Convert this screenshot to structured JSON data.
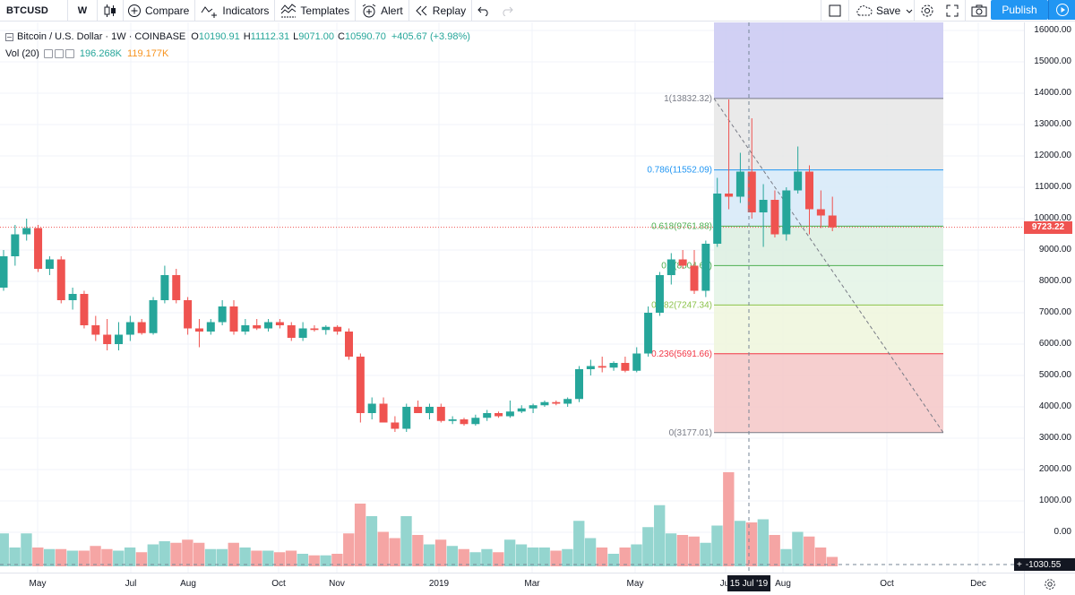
{
  "toolbar": {
    "symbol": "BTCUSD",
    "interval": "W",
    "compare_label": "Compare",
    "indicators_label": "Indicators",
    "templates_label": "Templates",
    "alert_label": "Alert",
    "replay_label": "Replay",
    "save_label": "Save",
    "publish_label": "Publish"
  },
  "legend": {
    "title": "Bitcoin / U.S. Dollar · 1W · COINBASE",
    "o_key": "O",
    "o_val": "10190.91",
    "h_key": "H",
    "h_val": "11112.31",
    "l_key": "L",
    "l_val": "9071.00",
    "c_key": "C",
    "c_val": "10590.70",
    "change": "+405.67 (+3.98%)",
    "vol_label": "Vol (20)",
    "vol_value": "196.268K",
    "vol_ma": "119.177K"
  },
  "price_axis": {
    "labels": [
      "16000.00",
      "15000.00",
      "14000.00",
      "13000.00",
      "12000.00",
      "11000.00",
      "10000.00",
      "9000.00",
      "8000.00",
      "7000.00",
      "6000.00",
      "5000.00",
      "4000.00",
      "3000.00",
      "2000.00",
      "1000.00",
      "0.00"
    ],
    "last_price": "9723.22",
    "crosshair_value": "-1030.55"
  },
  "time_axis": {
    "labels": [
      "May",
      "Jul",
      "Aug",
      "Oct",
      "Nov",
      "2019",
      "Mar",
      "May",
      "Jul",
      "Aug",
      "Oct",
      "Dec"
    ],
    "crosshair_date": "15 Jul '19"
  },
  "fibonacci": {
    "levels": [
      {
        "label": "1(13832.32)",
        "value": 13832.32,
        "color": "#787b86"
      },
      {
        "label": "0.786(11552.09)",
        "value": 11552.09,
        "color": "#2196f3"
      },
      {
        "label": "0.618(9761.88)",
        "value": 9761.88,
        "color": "#4caf50"
      },
      {
        "label": "0.5(8504.67)",
        "value": 8504.67,
        "color": "#4caf50"
      },
      {
        "label": "0.382(7247.34)",
        "value": 7247.34,
        "color": "#8bc34a"
      },
      {
        "label": "0.236(5691.66)",
        "value": 5691.66,
        "color": "#f23645"
      },
      {
        "label": "0(3177.01)",
        "value": 3177.01,
        "color": "#787b86"
      }
    ]
  },
  "colors": {
    "up": "#26a69a",
    "down": "#ef5350",
    "vol_up": "#94d5cf",
    "vol_down": "#f5a5a4",
    "accent": "#2196f3"
  },
  "chart_data": {
    "type": "candlestick",
    "title": "Bitcoin / U.S. Dollar · 1W · COINBASE",
    "ylim": [
      -1200,
      16300
    ],
    "last_price": 9723.22,
    "candles": [
      {
        "o": 7800,
        "h": 9000,
        "l": 7700,
        "c": 8800,
        "v": 1050
      },
      {
        "o": 8800,
        "h": 9800,
        "l": 8500,
        "c": 9500,
        "v": 600
      },
      {
        "o": 9500,
        "h": 10000,
        "l": 9300,
        "c": 9700,
        "v": 1050
      },
      {
        "o": 9700,
        "h": 9800,
        "l": 8300,
        "c": 8400,
        "v": 600
      },
      {
        "o": 8400,
        "h": 8800,
        "l": 8200,
        "c": 8700,
        "v": 550
      },
      {
        "o": 8700,
        "h": 8800,
        "l": 7300,
        "c": 7400,
        "v": 550
      },
      {
        "o": 7400,
        "h": 7800,
        "l": 7100,
        "c": 7600,
        "v": 500
      },
      {
        "o": 7600,
        "h": 7700,
        "l": 6500,
        "c": 6600,
        "v": 500
      },
      {
        "o": 6600,
        "h": 6900,
        "l": 6100,
        "c": 6300,
        "v": 650
      },
      {
        "o": 6300,
        "h": 6800,
        "l": 5800,
        "c": 6000,
        "v": 550
      },
      {
        "o": 6000,
        "h": 6700,
        "l": 5800,
        "c": 6300,
        "v": 500
      },
      {
        "o": 6300,
        "h": 6900,
        "l": 6100,
        "c": 6700,
        "v": 600
      },
      {
        "o": 6700,
        "h": 6800,
        "l": 6300,
        "c": 6350,
        "v": 450
      },
      {
        "o": 6350,
        "h": 7500,
        "l": 6300,
        "c": 7400,
        "v": 700
      },
      {
        "o": 7400,
        "h": 8500,
        "l": 7300,
        "c": 8200,
        "v": 800
      },
      {
        "o": 8200,
        "h": 8400,
        "l": 7300,
        "c": 7400,
        "v": 750
      },
      {
        "o": 7400,
        "h": 7500,
        "l": 6300,
        "c": 6500,
        "v": 850
      },
      {
        "o": 6500,
        "h": 6800,
        "l": 5900,
        "c": 6400,
        "v": 750
      },
      {
        "o": 6400,
        "h": 6800,
        "l": 6300,
        "c": 6700,
        "v": 550
      },
      {
        "o": 6700,
        "h": 7400,
        "l": 6600,
        "c": 7200,
        "v": 550
      },
      {
        "o": 7200,
        "h": 7400,
        "l": 6300,
        "c": 6400,
        "v": 750
      },
      {
        "o": 6400,
        "h": 6800,
        "l": 6300,
        "c": 6600,
        "v": 600
      },
      {
        "o": 6600,
        "h": 6800,
        "l": 6450,
        "c": 6500,
        "v": 500
      },
      {
        "o": 6500,
        "h": 6800,
        "l": 6400,
        "c": 6700,
        "v": 500
      },
      {
        "o": 6700,
        "h": 6800,
        "l": 6500,
        "c": 6600,
        "v": 450
      },
      {
        "o": 6600,
        "h": 6700,
        "l": 6100,
        "c": 6200,
        "v": 500
      },
      {
        "o": 6200,
        "h": 6700,
        "l": 6100,
        "c": 6500,
        "v": 400
      },
      {
        "o": 6500,
        "h": 6600,
        "l": 6400,
        "c": 6450,
        "v": 350
      },
      {
        "o": 6450,
        "h": 6600,
        "l": 6300,
        "c": 6550,
        "v": 350
      },
      {
        "o": 6550,
        "h": 6600,
        "l": 6300,
        "c": 6400,
        "v": 400
      },
      {
        "o": 6400,
        "h": 6500,
        "l": 5500,
        "c": 5600,
        "v": 1050
      },
      {
        "o": 5600,
        "h": 5700,
        "l": 3500,
        "c": 3800,
        "v": 2000
      },
      {
        "o": 3800,
        "h": 4300,
        "l": 3600,
        "c": 4100,
        "v": 1600
      },
      {
        "o": 4100,
        "h": 4300,
        "l": 3500,
        "c": 3500,
        "v": 1100
      },
      {
        "o": 3500,
        "h": 3700,
        "l": 3200,
        "c": 3300,
        "v": 900
      },
      {
        "o": 3300,
        "h": 4100,
        "l": 3200,
        "c": 4000,
        "v": 1600
      },
      {
        "o": 4000,
        "h": 4200,
        "l": 3800,
        "c": 3800,
        "v": 1000
      },
      {
        "o": 3800,
        "h": 4100,
        "l": 3600,
        "c": 4000,
        "v": 700
      },
      {
        "o": 4000,
        "h": 4100,
        "l": 3500,
        "c": 3550,
        "v": 850
      },
      {
        "o": 3550,
        "h": 3700,
        "l": 3450,
        "c": 3600,
        "v": 650
      },
      {
        "o": 3600,
        "h": 3650,
        "l": 3400,
        "c": 3450,
        "v": 550
      },
      {
        "o": 3450,
        "h": 3750,
        "l": 3400,
        "c": 3650,
        "v": 450
      },
      {
        "o": 3650,
        "h": 3900,
        "l": 3550,
        "c": 3800,
        "v": 550
      },
      {
        "o": 3800,
        "h": 3850,
        "l": 3650,
        "c": 3700,
        "v": 450
      },
      {
        "o": 3700,
        "h": 4200,
        "l": 3650,
        "c": 3850,
        "v": 850
      },
      {
        "o": 3850,
        "h": 4050,
        "l": 3800,
        "c": 3950,
        "v": 700
      },
      {
        "o": 3950,
        "h": 4100,
        "l": 3800,
        "c": 4050,
        "v": 600
      },
      {
        "o": 4050,
        "h": 4200,
        "l": 4000,
        "c": 4150,
        "v": 600
      },
      {
        "o": 4150,
        "h": 4200,
        "l": 4050,
        "c": 4100,
        "v": 500
      },
      {
        "o": 4100,
        "h": 4300,
        "l": 4000,
        "c": 4250,
        "v": 550
      },
      {
        "o": 4250,
        "h": 5300,
        "l": 4150,
        "c": 5200,
        "v": 1450
      },
      {
        "o": 5200,
        "h": 5500,
        "l": 5000,
        "c": 5300,
        "v": 900
      },
      {
        "o": 5300,
        "h": 5600,
        "l": 5100,
        "c": 5250,
        "v": 600
      },
      {
        "o": 5250,
        "h": 5450,
        "l": 5150,
        "c": 5400,
        "v": 400
      },
      {
        "o": 5400,
        "h": 5600,
        "l": 5100,
        "c": 5150,
        "v": 600
      },
      {
        "o": 5150,
        "h": 5900,
        "l": 5100,
        "c": 5700,
        "v": 700
      },
      {
        "o": 5700,
        "h": 7200,
        "l": 5600,
        "c": 7000,
        "v": 1250
      },
      {
        "o": 7000,
        "h": 8300,
        "l": 6900,
        "c": 8200,
        "v": 1950
      },
      {
        "o": 8200,
        "h": 8900,
        "l": 7900,
        "c": 8700,
        "v": 1050
      },
      {
        "o": 8700,
        "h": 9000,
        "l": 8400,
        "c": 8500,
        "v": 1000
      },
      {
        "o": 8500,
        "h": 9000,
        "l": 7600,
        "c": 7700,
        "v": 950
      },
      {
        "o": 7700,
        "h": 9300,
        "l": 7500,
        "c": 9200,
        "v": 750
      },
      {
        "o": 9200,
        "h": 11300,
        "l": 9100,
        "c": 10800,
        "v": 1300
      },
      {
        "o": 10800,
        "h": 13800,
        "l": 10300,
        "c": 10700,
        "v": 3000
      },
      {
        "o": 10700,
        "h": 12100,
        "l": 10500,
        "c": 11500,
        "v": 1450
      },
      {
        "o": 11500,
        "h": 13200,
        "l": 10000,
        "c": 10200,
        "v": 1400
      },
      {
        "o": 10200,
        "h": 11100,
        "l": 9100,
        "c": 10600,
        "v": 1500
      },
      {
        "o": 10600,
        "h": 10900,
        "l": 9400,
        "c": 9500,
        "v": 1000
      },
      {
        "o": 9500,
        "h": 11000,
        "l": 9300,
        "c": 10900,
        "v": 550
      },
      {
        "o": 10900,
        "h": 12300,
        "l": 10800,
        "c": 11500,
        "v": 1100
      },
      {
        "o": 11500,
        "h": 11700,
        "l": 9500,
        "c": 10300,
        "v": 950
      },
      {
        "o": 10300,
        "h": 10900,
        "l": 9700,
        "c": 10100,
        "v": 600
      },
      {
        "o": 10100,
        "h": 10700,
        "l": 9600,
        "c": 9723,
        "v": 300
      }
    ]
  }
}
